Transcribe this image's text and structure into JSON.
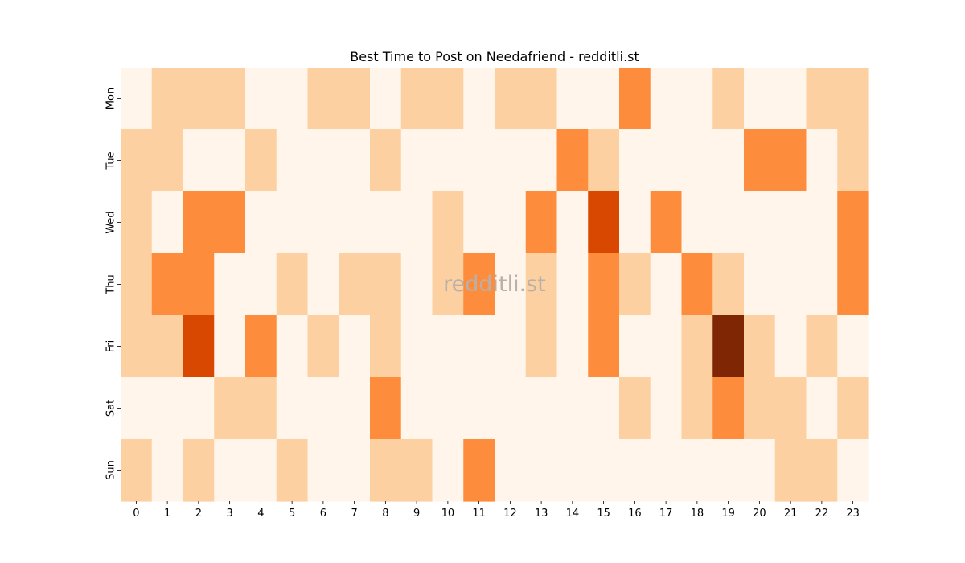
{
  "chart_data": {
    "type": "heatmap",
    "title": "Best Time to Post on Needafriend - redditli.st",
    "watermark": "redditli.st",
    "x_categories": [
      "0",
      "1",
      "2",
      "3",
      "4",
      "5",
      "6",
      "7",
      "8",
      "9",
      "10",
      "11",
      "12",
      "13",
      "14",
      "15",
      "16",
      "17",
      "18",
      "19",
      "20",
      "21",
      "22",
      "23"
    ],
    "y_categories": [
      "Mon",
      "Tue",
      "Wed",
      "Thu",
      "Fri",
      "Sat",
      "Sun"
    ],
    "values": [
      [
        0,
        1,
        1,
        1,
        0,
        0,
        1,
        1,
        0,
        1,
        1,
        0,
        1,
        1,
        0,
        0,
        2,
        0,
        0,
        1,
        0,
        0,
        1,
        1
      ],
      [
        1,
        1,
        0,
        0,
        1,
        0,
        0,
        0,
        1,
        0,
        0,
        0,
        0,
        0,
        2,
        1,
        0,
        0,
        0,
        0,
        2,
        2,
        0,
        1
      ],
      [
        1,
        0,
        2,
        2,
        0,
        0,
        0,
        0,
        0,
        0,
        1,
        0,
        0,
        2,
        0,
        3,
        0,
        2,
        0,
        0,
        0,
        0,
        0,
        2
      ],
      [
        1,
        2,
        2,
        0,
        0,
        1,
        0,
        1,
        1,
        0,
        1,
        2,
        0,
        1,
        0,
        2,
        1,
        0,
        2,
        1,
        0,
        0,
        0,
        2
      ],
      [
        1,
        1,
        3,
        0,
        2,
        0,
        1,
        0,
        1,
        0,
        0,
        0,
        0,
        1,
        0,
        2,
        0,
        0,
        1,
        4,
        1,
        0,
        1,
        0
      ],
      [
        0,
        0,
        0,
        1,
        1,
        0,
        0,
        0,
        2,
        0,
        0,
        0,
        0,
        0,
        0,
        0,
        1,
        0,
        1,
        2,
        1,
        1,
        0,
        1
      ],
      [
        1,
        0,
        1,
        0,
        0,
        1,
        0,
        0,
        1,
        1,
        0,
        2,
        0,
        0,
        0,
        0,
        0,
        0,
        0,
        0,
        0,
        1,
        1,
        0
      ]
    ],
    "vmin": 0,
    "vmax": 4,
    "colormap": [
      "#fff5eb",
      "#fdd0a2",
      "#fd8d3c",
      "#d94801",
      "#7f2704"
    ],
    "grid": false,
    "legend": "none"
  }
}
